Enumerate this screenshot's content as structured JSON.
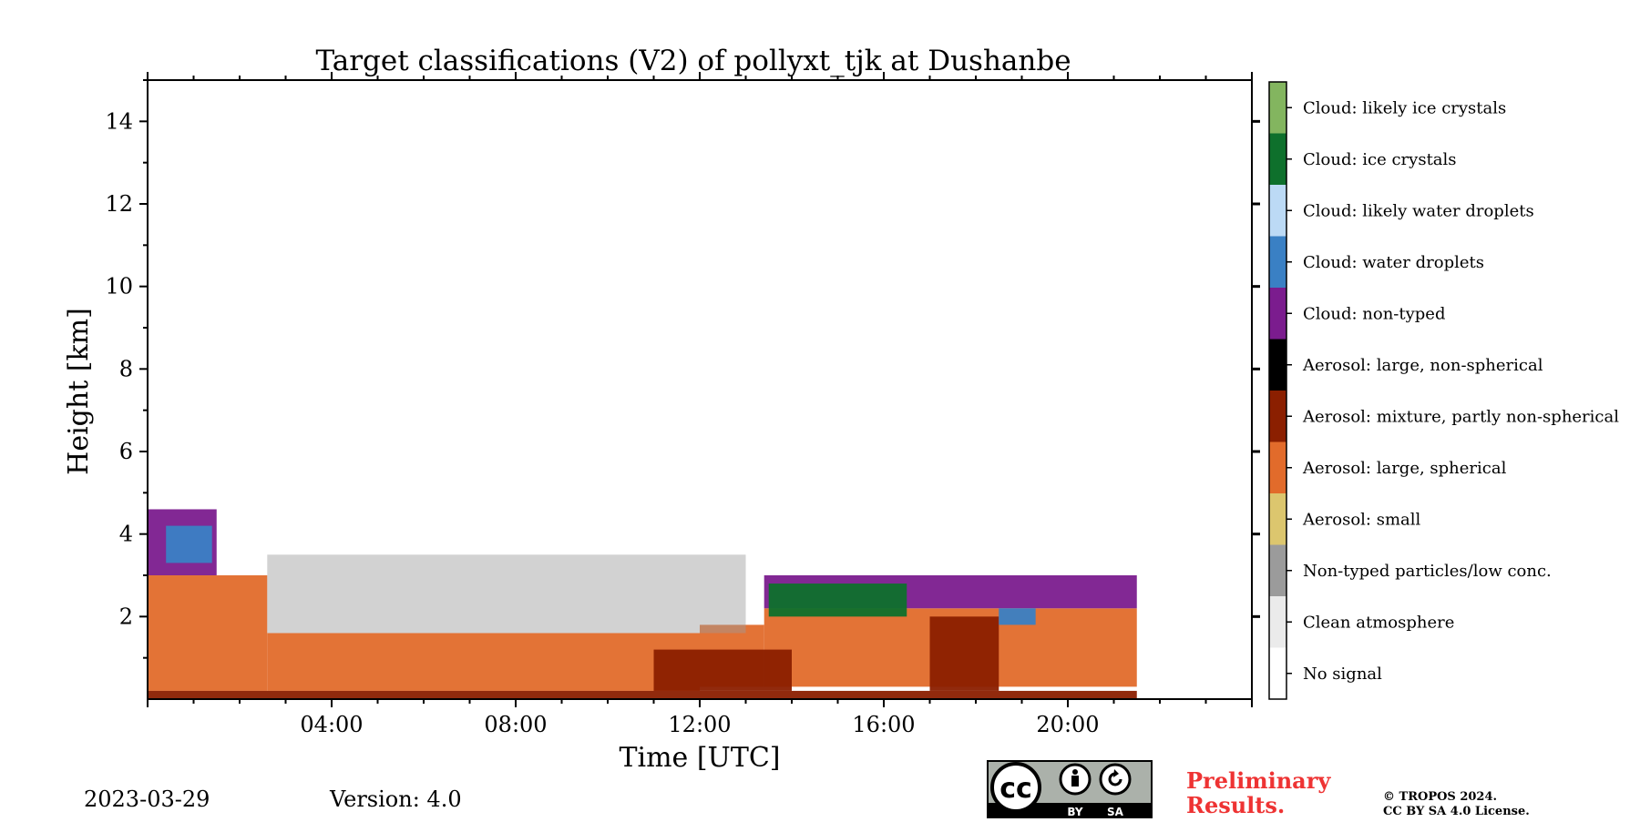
{
  "chart_data": {
    "type": "heatmap",
    "title": "Target classifications (V2) of pollyxt_tjk at Dushanbe",
    "xlabel": "Time [UTC]",
    "ylabel": "Height [km]",
    "xlim": [
      0,
      24
    ],
    "ylim": [
      0,
      15
    ],
    "x_ticks": [
      {
        "value": 4,
        "label": "04:00"
      },
      {
        "value": 8,
        "label": "08:00"
      },
      {
        "value": 12,
        "label": "12:00"
      },
      {
        "value": 16,
        "label": "16:00"
      },
      {
        "value": 20,
        "label": "20:00"
      }
    ],
    "y_ticks": [
      {
        "value": 2,
        "label": "2"
      },
      {
        "value": 4,
        "label": "4"
      },
      {
        "value": 6,
        "label": "6"
      },
      {
        "value": 8,
        "label": "8"
      },
      {
        "value": 10,
        "label": "10"
      },
      {
        "value": 12,
        "label": "12"
      },
      {
        "value": 14,
        "label": "14"
      }
    ],
    "classes": [
      {
        "id": 0,
        "label": "No signal",
        "color": "#ffffff"
      },
      {
        "id": 1,
        "label": "Clean atmosphere",
        "color": "#ebebeb"
      },
      {
        "id": 2,
        "label": "Non-typed particles/low conc.",
        "color": "#9b9b9b"
      },
      {
        "id": 3,
        "label": "Aerosol: small",
        "color": "#dcc66e"
      },
      {
        "id": 4,
        "label": "Aerosol: large, spherical",
        "color": "#e26b2b"
      },
      {
        "id": 5,
        "label": "Aerosol: mixture, partly non-spherical",
        "color": "#8b1f00"
      },
      {
        "id": 6,
        "label": "Aerosol: large, non-spherical",
        "color": "#000000"
      },
      {
        "id": 7,
        "label": "Cloud: non-typed",
        "color": "#7b1c8e"
      },
      {
        "id": 8,
        "label": "Cloud: water droplets",
        "color": "#3a80c4"
      },
      {
        "id": 9,
        "label": "Cloud: likely water droplets",
        "color": "#bcdaf5"
      },
      {
        "id": 10,
        "label": "Cloud: ice crystals",
        "color": "#0e702c"
      },
      {
        "id": 11,
        "label": "Cloud: likely ice crystals",
        "color": "#83b55f"
      }
    ],
    "layers": [
      {
        "class": 4,
        "segments": [
          {
            "x": [
              0.0,
              2.6
            ],
            "y": [
              0.2,
              3.0
            ]
          },
          {
            "x": [
              2.6,
              12.0
            ],
            "y": [
              0.2,
              1.6
            ]
          },
          {
            "x": [
              12.0,
              13.4
            ],
            "y": [
              0.3,
              1.8
            ]
          },
          {
            "x": [
              13.4,
              21.5
            ],
            "y": [
              0.3,
              2.2
            ]
          }
        ]
      },
      {
        "class": 5,
        "segments": [
          {
            "x": [
              0.0,
              21.5
            ],
            "y": [
              0.0,
              0.2
            ]
          },
          {
            "x": [
              11.0,
              14.0
            ],
            "y": [
              0.2,
              1.2
            ]
          },
          {
            "x": [
              17.0,
              18.5
            ],
            "y": [
              0.2,
              2.0
            ]
          }
        ]
      },
      {
        "class": 2,
        "segments": [
          {
            "x": [
              2.6,
              13.0
            ],
            "y": [
              1.6,
              3.5
            ]
          }
        ]
      },
      {
        "class": 7,
        "segments": [
          {
            "x": [
              0.0,
              1.5
            ],
            "y": [
              3.0,
              4.6
            ]
          },
          {
            "x": [
              13.4,
              21.5
            ],
            "y": [
              2.2,
              3.0
            ]
          }
        ]
      },
      {
        "class": 10,
        "segments": [
          {
            "x": [
              13.5,
              16.5
            ],
            "y": [
              2.0,
              2.8
            ]
          }
        ]
      },
      {
        "class": 8,
        "segments": [
          {
            "x": [
              0.4,
              1.4
            ],
            "y": [
              3.3,
              4.2
            ]
          },
          {
            "x": [
              18.5,
              19.3
            ],
            "y": [
              1.8,
              2.2
            ]
          }
        ]
      }
    ]
  },
  "footer": {
    "date": "2023-03-29",
    "version": "Version: 4.0",
    "cc_symbol": "cc",
    "cc_by": "BY",
    "cc_sa": "SA",
    "preliminary_line1": "Preliminary",
    "preliminary_line2": "Results.",
    "license_line1": "© TROPOS 2024.",
    "license_line2": "CC BY SA 4.0 License."
  }
}
